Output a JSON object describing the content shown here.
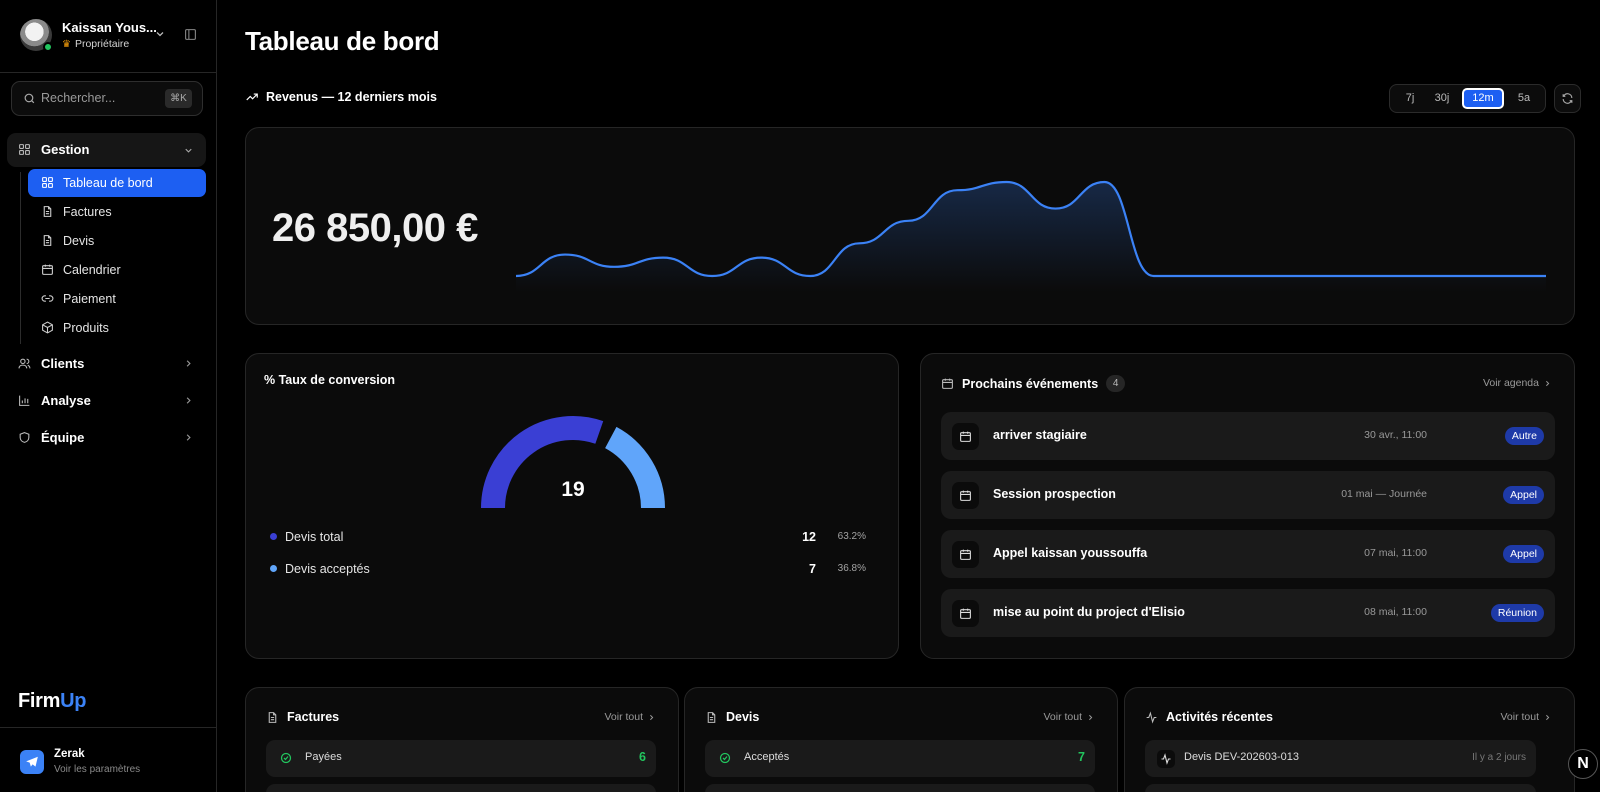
{
  "user": {
    "name": "Kaissan Yous...",
    "role": "Propriétaire"
  },
  "search": {
    "placeholder": "Rechercher...",
    "shortcut": "⌘K"
  },
  "sidebar": {
    "group": {
      "label": "Gestion"
    },
    "sub_items": [
      {
        "label": "Tableau de bord",
        "icon": "dashboard-icon",
        "active": true
      },
      {
        "label": "Factures",
        "icon": "file-icon"
      },
      {
        "label": "Devis",
        "icon": "file-icon"
      },
      {
        "label": "Calendrier",
        "icon": "calendar-icon"
      },
      {
        "label": "Paiement",
        "icon": "link-icon"
      },
      {
        "label": "Produits",
        "icon": "package-icon"
      }
    ],
    "top_items": [
      {
        "label": "Clients",
        "icon": "users-icon"
      },
      {
        "label": "Analyse",
        "icon": "bar-chart-icon"
      },
      {
        "label": "Équipe",
        "icon": "shield-icon"
      }
    ],
    "brand": {
      "part1": "Firm",
      "part2": "Up"
    },
    "footer": {
      "name": "Zerak",
      "sub": "Voir les paramètres"
    }
  },
  "page": {
    "title": "Tableau de bord"
  },
  "revenue": {
    "heading": "Revenus — 12 derniers mois",
    "ranges": [
      "7j",
      "30j",
      "12m",
      "5a"
    ],
    "selected_range": "12m",
    "total": "26 850,00 €"
  },
  "chart_data": {
    "type": "area",
    "title": "",
    "xlabel": "",
    "ylabel": "",
    "x": [
      0,
      1,
      2,
      3,
      4,
      5,
      6,
      7,
      8,
      9,
      10,
      11,
      12,
      13,
      14,
      15,
      16,
      17,
      18,
      19,
      20,
      21
    ],
    "values": [
      0,
      1.05,
      0.45,
      0.9,
      0,
      0.9,
      0,
      1.6,
      2.7,
      4.2,
      4.6,
      3.3,
      4.6,
      0,
      0,
      0,
      0,
      0,
      0,
      0,
      0,
      0
    ],
    "series": [
      {
        "values": [
          0,
          1.05,
          0.45,
          0.9,
          0,
          0.9,
          0,
          1.6,
          2.7,
          4.2,
          4.6,
          3.3,
          4.6,
          0,
          0,
          0,
          0,
          0,
          0,
          0,
          0,
          0
        ]
      }
    ],
    "color": "#3b82f6",
    "grid": false
  },
  "conversion": {
    "title": "% Taux de conversion",
    "total": "19",
    "legend": [
      {
        "label": "Devis total",
        "value": "12",
        "percent": "63.2%",
        "color": "#3a3fd4"
      },
      {
        "label": "Devis acceptés",
        "value": "7",
        "percent": "36.8%",
        "color": "#60a5fa"
      }
    ]
  },
  "events": {
    "title": "Prochains événements",
    "count": "4",
    "link": "Voir agenda",
    "items": [
      {
        "title": "arriver stagiaire",
        "date": "30 avr., 11:00",
        "badge": "Autre"
      },
      {
        "title": "Session prospection",
        "date": "01 mai — Journée",
        "badge": "Appel"
      },
      {
        "title": "Appel kaissan youssouffa",
        "date": "07 mai, 11:00",
        "badge": "Appel"
      },
      {
        "title": "mise au point du project d'Elisio",
        "date": "08 mai, 11:00",
        "badge": "Réunion"
      }
    ]
  },
  "invoices": {
    "title": "Factures",
    "link": "Voir tout",
    "row": {
      "label": "Payées",
      "value": "6"
    }
  },
  "quotes": {
    "title": "Devis",
    "link": "Voir tout",
    "row": {
      "label": "Acceptés",
      "value": "7"
    }
  },
  "activity": {
    "title": "Activités récentes",
    "link": "Voir tout",
    "row": {
      "label": "Devis DEV-202603-013",
      "time": "Il y a 2 jours"
    }
  },
  "fab": {
    "label": "N"
  }
}
